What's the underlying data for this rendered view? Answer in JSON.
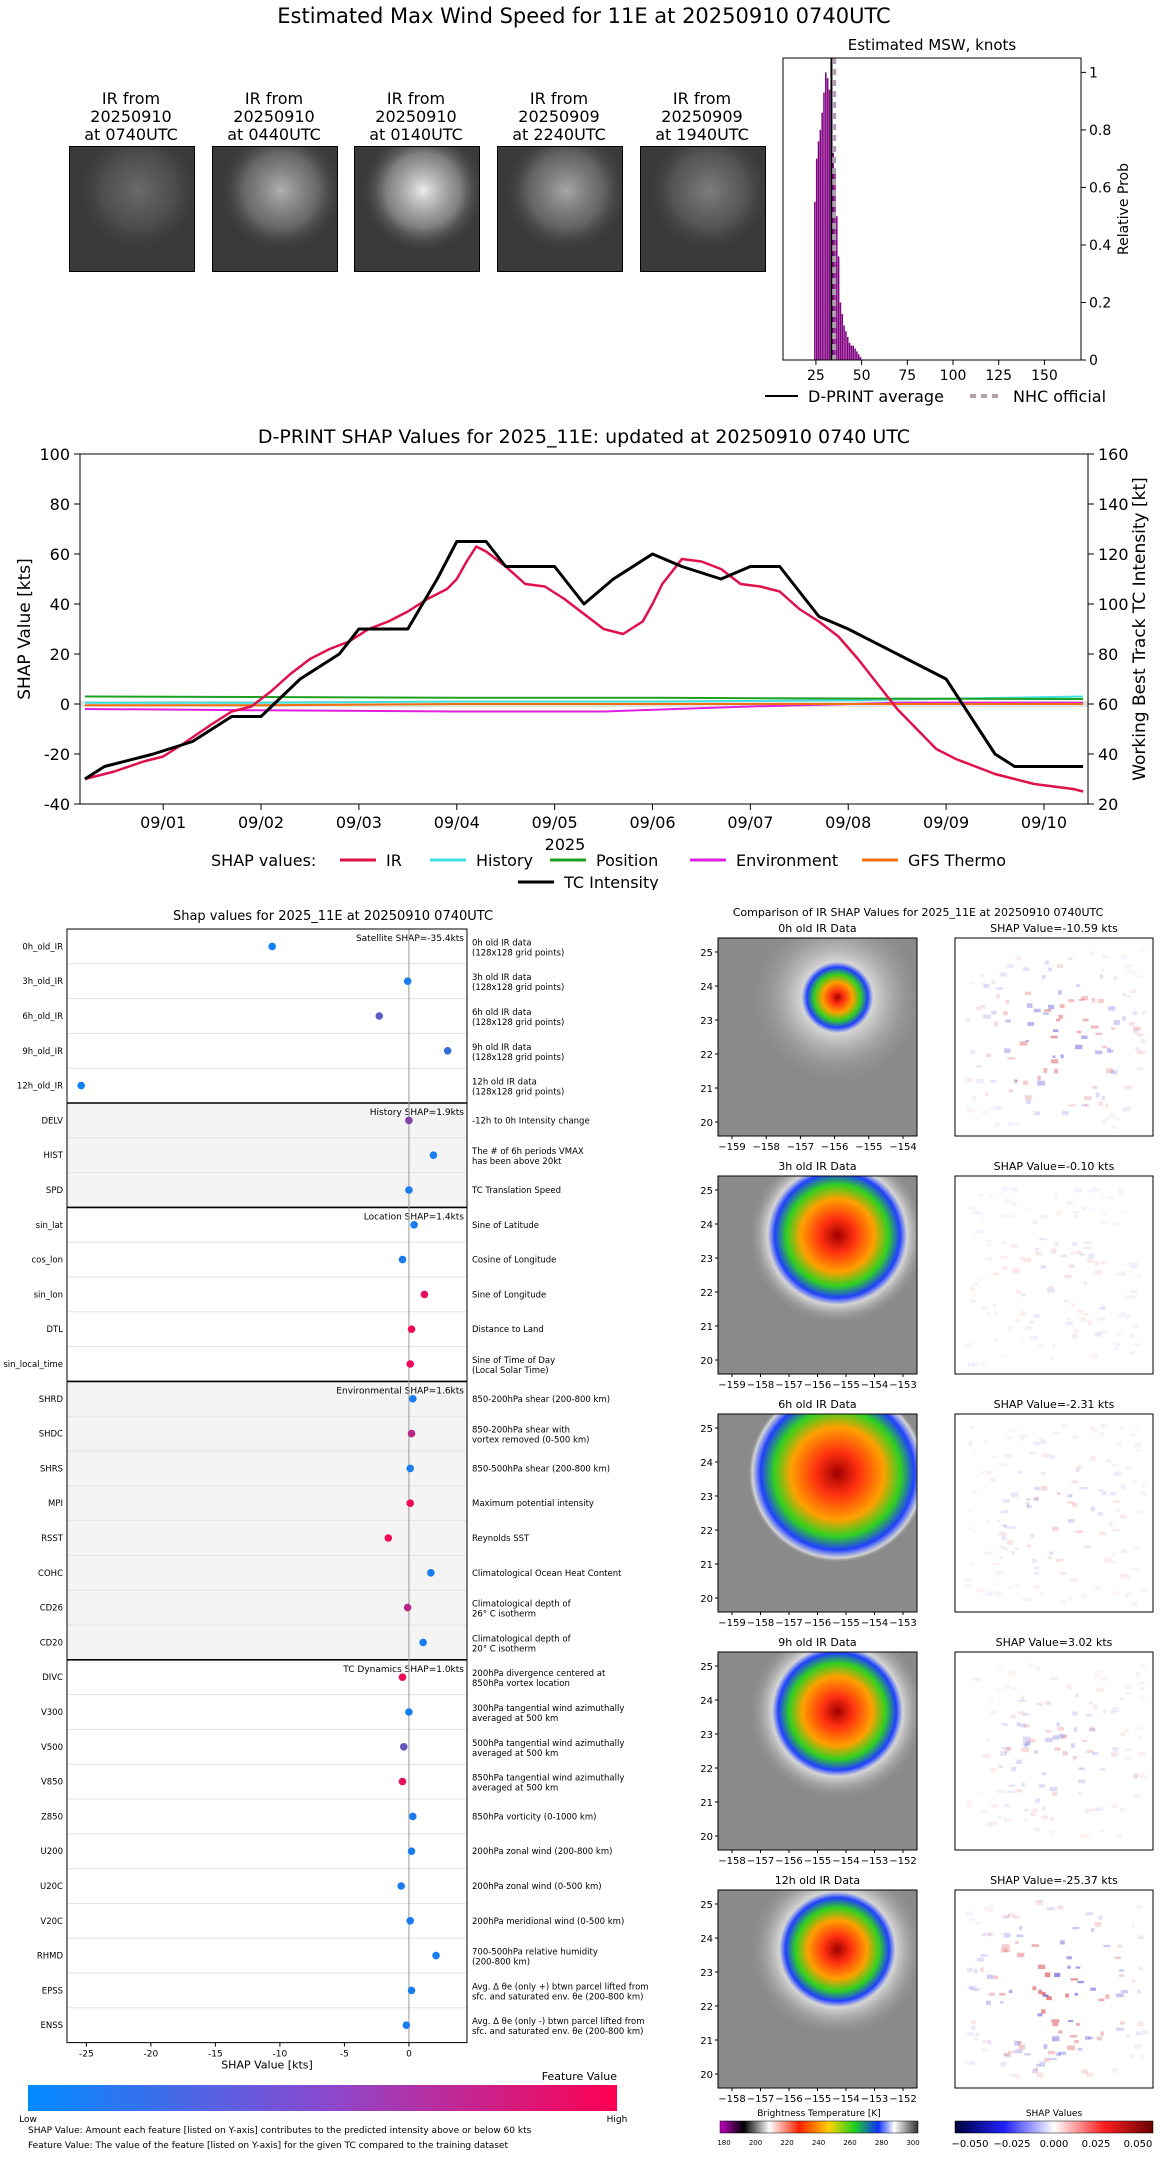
{
  "page": {
    "title": "Estimated Max Wind Speed for 11E at 20250910 0740UTC"
  },
  "ir_thumbnails": [
    {
      "line1": "IR from",
      "line2": "20250910",
      "line3": "at 0740UTC",
      "cloud": 0.25
    },
    {
      "line1": "IR from",
      "line2": "20250910",
      "line3": "at 0440UTC",
      "cloud": 0.6
    },
    {
      "line1": "IR from",
      "line2": "20250910",
      "line3": "at 0140UTC",
      "cloud": 0.9
    },
    {
      "line1": "IR from",
      "line2": "20250909",
      "line3": "at 2240UTC",
      "cloud": 0.55
    },
    {
      "line1": "IR from",
      "line2": "20250909",
      "line3": "at 1940UTC",
      "cloud": 0.35
    }
  ],
  "colors": {
    "ir": "#e0104a",
    "history": "#40e0e0",
    "position": "#20a020",
    "environment": "#e020e0",
    "gfs_thermo": "#f07010",
    "tc_intensity": "#000000",
    "purple": "#800080",
    "nhc": "#b0a0b0"
  },
  "chart_data": [
    {
      "id": "msw-histogram",
      "type": "bar",
      "title": "Estimated MSW, knots",
      "xlabel": "",
      "ylabel": "Relative Prob",
      "xlim": [
        7,
        170
      ],
      "ylim": [
        0,
        1.05
      ],
      "xticks": [
        25,
        50,
        75,
        100,
        125,
        150
      ],
      "yticks": [
        0.0,
        0.2,
        0.4,
        0.6,
        0.8,
        1.0
      ],
      "bins_x": [
        24,
        25,
        26,
        27,
        28,
        29,
        30,
        31,
        32,
        33,
        34,
        35,
        36,
        37,
        38,
        39,
        40,
        41,
        42,
        43,
        44,
        45,
        46,
        47,
        48,
        49
      ],
      "bins_y": [
        0.55,
        0.7,
        0.76,
        0.8,
        0.86,
        0.93,
        1.0,
        0.98,
        0.94,
        0.88,
        0.72,
        0.66,
        0.5,
        0.36,
        0.2,
        0.16,
        0.12,
        0.1,
        0.08,
        0.06,
        0.05,
        0.05,
        0.04,
        0.03,
        0.02,
        0.01
      ],
      "dpr_average": 33.5,
      "nhc_official": 35,
      "legend": [
        "D-PRINT average",
        "NHC official"
      ]
    },
    {
      "id": "shap-time-series",
      "type": "line",
      "title": "D-PRINT SHAP Values for 2025_11E: updated at 20250910 0740 UTC",
      "xlabel": "2025",
      "ylabel": "SHAP Value [kts]",
      "y2label": "Working Best Track TC Intensity [kt]",
      "ylim": [
        -40,
        100
      ],
      "y2lim": [
        20,
        160
      ],
      "yticks": [
        -40,
        -20,
        0,
        20,
        40,
        60,
        80,
        100
      ],
      "y2ticks": [
        20,
        40,
        60,
        80,
        100,
        120,
        140,
        160
      ],
      "xlim": [
        0.15,
        10.45
      ],
      "xticks": [
        1,
        2,
        3,
        4,
        5,
        6,
        7,
        8,
        9,
        10
      ],
      "xticklabels": [
        "09/01",
        "09/02",
        "09/03",
        "09/04",
        "09/05",
        "09/06",
        "09/07",
        "09/08",
        "09/09",
        "09/10"
      ],
      "legend_prefix": "SHAP values:",
      "series": [
        {
          "name": "IR",
          "color": "#e0104a",
          "x": [
            0.2,
            0.5,
            0.8,
            1.0,
            1.2,
            1.5,
            1.7,
            1.9,
            2.1,
            2.3,
            2.5,
            2.7,
            2.9,
            3.1,
            3.3,
            3.5,
            3.7,
            3.9,
            4.0,
            4.1,
            4.2,
            4.3,
            4.5,
            4.7,
            4.9,
            5.1,
            5.3,
            5.5,
            5.7,
            5.9,
            6.0,
            6.1,
            6.3,
            6.5,
            6.7,
            6.9,
            7.1,
            7.3,
            7.5,
            7.7,
            7.9,
            8.1,
            8.3,
            8.5,
            8.7,
            8.9,
            9.1,
            9.3,
            9.5,
            9.7,
            9.9,
            10.1,
            10.3,
            10.4
          ],
          "y": [
            -30,
            -27,
            -23,
            -21,
            -16,
            -8,
            -3,
            -1,
            5,
            12,
            18,
            22,
            25,
            30,
            33,
            37,
            42,
            46,
            50,
            57,
            63,
            61,
            55,
            48,
            47,
            42,
            36,
            30,
            28,
            33,
            40,
            48,
            58,
            57,
            54,
            48,
            47,
            45,
            38,
            33,
            27,
            18,
            8,
            -2,
            -10,
            -18,
            -22,
            -25,
            -28,
            -30,
            -32,
            -33,
            -34,
            -35
          ]
        },
        {
          "name": "History",
          "color": "#40e0e0",
          "x": [
            0.2,
            2.0,
            4.0,
            6.0,
            8.0,
            10.4
          ],
          "y": [
            0.5,
            0.5,
            1,
            1,
            1.5,
            3
          ]
        },
        {
          "name": "Position",
          "color": "#20a020",
          "x": [
            0.2,
            2.0,
            4.0,
            6.0,
            8.0,
            10.4
          ],
          "y": [
            3,
            2.8,
            2.5,
            2.5,
            2.2,
            2
          ]
        },
        {
          "name": "Environment",
          "color": "#e020e0",
          "x": [
            0.2,
            2.0,
            4.0,
            5.5,
            7.0,
            8.5,
            10.4
          ],
          "y": [
            -2,
            -2.5,
            -3,
            -3,
            -1,
            0.5,
            0.5
          ]
        },
        {
          "name": "GFS Thermo",
          "color": "#f07010",
          "x": [
            0.2,
            2.0,
            4.0,
            6.0,
            8.0,
            10.4
          ],
          "y": [
            -0.5,
            -0.5,
            0,
            0,
            0,
            0
          ]
        }
      ],
      "tc_intensity": {
        "name": "TC Intensity",
        "color": "#000000",
        "x": [
          0.2,
          0.4,
          0.9,
          1.3,
          1.7,
          2.0,
          2.4,
          2.8,
          3.0,
          3.5,
          3.8,
          4.0,
          4.3,
          4.5,
          5.0,
          5.3,
          5.6,
          6.0,
          6.3,
          6.7,
          7.0,
          7.3,
          7.7,
          8.0,
          9.0,
          9.5,
          9.7,
          10.0,
          10.4
        ],
        "y": [
          30,
          35,
          40,
          45,
          55,
          55,
          70,
          80,
          90,
          90,
          110,
          125,
          125,
          115,
          115,
          100,
          110,
          120,
          115,
          110,
          115,
          115,
          95,
          90,
          70,
          40,
          35,
          35,
          35
        ]
      }
    },
    {
      "id": "feature-shap-dots",
      "type": "scatter",
      "title": "Shap values for 2025_11E at 20250910 0740UTC",
      "xlabel": "SHAP Value [kts]",
      "xlim": [
        -26.5,
        4.5
      ],
      "xticks": [
        -25,
        -20,
        -15,
        -10,
        -5,
        0
      ],
      "groups": [
        {
          "label": "Satellite SHAP=-35.4kts",
          "shaded": false,
          "features": [
            {
              "name": "0h_old_IR",
              "desc1": "0h old IR data",
              "desc2": "(128x128 grid points)",
              "shap": -10.6,
              "fv": 0.05
            },
            {
              "name": "3h_old_IR",
              "desc1": "3h old IR data",
              "desc2": "(128x128 grid points)",
              "shap": -0.1,
              "fv": 0.1
            },
            {
              "name": "6h_old_IR",
              "desc1": "6h old IR data",
              "desc2": "(128x128 grid points)",
              "shap": -2.3,
              "fv": 0.35
            },
            {
              "name": "9h_old_IR",
              "desc1": "9h old IR data",
              "desc2": "(128x128 grid points)",
              "shap": 3.0,
              "fv": 0.2
            },
            {
              "name": "12h_old_IR",
              "desc1": "12h old IR data",
              "desc2": "(128x128 grid points)",
              "shap": -25.4,
              "fv": 0.05
            }
          ]
        },
        {
          "label": "History SHAP=1.9kts",
          "shaded": true,
          "features": [
            {
              "name": "DELV",
              "desc1": "-12h to 0h Intensity change",
              "desc2": "",
              "shap": 0.0,
              "fv": 0.5
            },
            {
              "name": "HIST",
              "desc1": "The # of 6h periods VMAX",
              "desc2": "has been above 20kt",
              "shap": 1.9,
              "fv": 0.1
            },
            {
              "name": "SPD",
              "desc1": "TC Translation Speed",
              "desc2": "",
              "shap": 0.0,
              "fv": 0.1
            }
          ]
        },
        {
          "label": "Location SHAP=1.4kts",
          "shaded": false,
          "features": [
            {
              "name": "sin_lat",
              "desc1": "Sine of Latitude",
              "desc2": "",
              "shap": 0.4,
              "fv": 0.1
            },
            {
              "name": "cos_lon",
              "desc1": "Cosine of Longitude",
              "desc2": "",
              "shap": -0.5,
              "fv": 0.1
            },
            {
              "name": "sin_lon",
              "desc1": "Sine of Longitude",
              "desc2": "",
              "shap": 1.2,
              "fv": 0.9
            },
            {
              "name": "DTL",
              "desc1": "Distance to Land",
              "desc2": "",
              "shap": 0.2,
              "fv": 0.95
            },
            {
              "name": "sin_local_time",
              "desc1": "Sine of Time of Day",
              "desc2": "(Local Solar Time)",
              "shap": 0.1,
              "fv": 0.95
            }
          ]
        },
        {
          "label": "Environmental SHAP=1.6kts",
          "shaded": true,
          "features": [
            {
              "name": "SHRD",
              "desc1": "850-200hPa shear (200-800 km)",
              "desc2": "",
              "shap": 0.3,
              "fv": 0.1
            },
            {
              "name": "SHDC",
              "desc1": "850-200hPa shear with",
              "desc2": "vortex removed (0-500 km)",
              "shap": 0.2,
              "fv": 0.7
            },
            {
              "name": "SHRS",
              "desc1": "850-500hPa shear (200-800 km)",
              "desc2": "",
              "shap": 0.1,
              "fv": 0.1
            },
            {
              "name": "MPI",
              "desc1": "Maximum potential intensity",
              "desc2": "",
              "shap": 0.1,
              "fv": 0.95
            },
            {
              "name": "RSST",
              "desc1": "Reynolds SST",
              "desc2": "",
              "shap": -1.6,
              "fv": 0.95
            },
            {
              "name": "COHC",
              "desc1": "Climatological Ocean Heat Content",
              "desc2": "",
              "shap": 1.7,
              "fv": 0.1
            },
            {
              "name": "CD26",
              "desc1": "Climatological depth of",
              "desc2": "26° C isotherm",
              "shap": -0.1,
              "fv": 0.7
            },
            {
              "name": "CD20",
              "desc1": "Climatological depth of",
              "desc2": "20° C isotherm",
              "shap": 1.1,
              "fv": 0.1
            }
          ]
        },
        {
          "label": "TC Dynamics SHAP=1.0kts",
          "shaded": false,
          "features": [
            {
              "name": "DIVC",
              "desc1": "200hPa divergence centered at",
              "desc2": "850hPa vortex location",
              "shap": -0.5,
              "fv": 0.95
            },
            {
              "name": "V300",
              "desc1": "300hPa tangential wind azimuthally",
              "desc2": "averaged at 500 km",
              "shap": 0.0,
              "fv": 0.1
            },
            {
              "name": "V500",
              "desc1": "500hPa tangential wind azimuthally",
              "desc2": "averaged at 500 km",
              "shap": -0.4,
              "fv": 0.4
            },
            {
              "name": "V850",
              "desc1": "850hPa tangential wind azimuthally",
              "desc2": "averaged at 500 km",
              "shap": -0.5,
              "fv": 0.9
            },
            {
              "name": "Z850",
              "desc1": "850hPa vorticity (0-1000 km)",
              "desc2": "",
              "shap": 0.3,
              "fv": 0.1
            },
            {
              "name": "U200",
              "desc1": "200hPa zonal wind (200-800 km)",
              "desc2": "",
              "shap": 0.2,
              "fv": 0.1
            },
            {
              "name": "U20C",
              "desc1": "200hPa zonal wind (0-500 km)",
              "desc2": "",
              "shap": -0.6,
              "fv": 0.1
            },
            {
              "name": "V20C",
              "desc1": "200hPa meridional wind (0-500 km)",
              "desc2": "",
              "shap": 0.1,
              "fv": 0.1
            },
            {
              "name": "RHMD",
              "desc1": "700-500hPa relative humidity",
              "desc2": "(200-800 km)",
              "shap": 2.1,
              "fv": 0.1
            },
            {
              "name": "EPSS",
              "desc1": "Avg. Δ θe (only +) btwn parcel lifted from",
              "desc2": "sfc. and saturated env. θe (200-800 km)",
              "shap": 0.2,
              "fv": 0.1
            },
            {
              "name": "ENSS",
              "desc1": "Avg. Δ θe (only -) btwn parcel lifted from",
              "desc2": "sfc. and saturated env. θe (200-800 km)",
              "shap": -0.2,
              "fv": 0.1
            }
          ]
        }
      ],
      "feature_colorbar": {
        "title": "Feature Value",
        "low": "Low",
        "high": "High"
      }
    },
    {
      "id": "ir-shap-comparison",
      "type": "heatmap",
      "title": "Comparison of IR SHAP Values for 2025_11E at 20250910 0740UTC",
      "rows": [
        {
          "ir_title": "0h old IR Data",
          "shap_title": "SHAP Value=-10.59 kts",
          "xticks": [
            "−159",
            "−158",
            "−157",
            "−156",
            "−155",
            "−154"
          ],
          "yticks": [
            "25",
            "24",
            "23",
            "22",
            "21",
            "20"
          ],
          "intensity": 0.3
        },
        {
          "ir_title": "3h old IR Data",
          "shap_title": "SHAP Value=-0.10 kts",
          "xticks": [
            "−159",
            "−158",
            "−157",
            "−156",
            "−155",
            "−154",
            "−153"
          ],
          "yticks": [
            "25",
            "24",
            "23",
            "22",
            "21",
            "20"
          ],
          "intensity": 0.75
        },
        {
          "ir_title": "6h old IR Data",
          "shap_title": "SHAP Value=-2.31 kts",
          "xticks": [
            "−159",
            "−158",
            "−157",
            "−156",
            "−155",
            "−154",
            "−153"
          ],
          "yticks": [
            "25",
            "24",
            "23",
            "22",
            "21",
            "20"
          ],
          "intensity": 0.95
        },
        {
          "ir_title": "9h old IR Data",
          "shap_title": "SHAP Value=3.02 kts",
          "xticks": [
            "−158",
            "−157",
            "−156",
            "−155",
            "−154",
            "−153",
            "−152"
          ],
          "yticks": [
            "25",
            "24",
            "23",
            "22",
            "21",
            "20"
          ],
          "intensity": 0.7
        },
        {
          "ir_title": "12h old IR Data",
          "shap_title": "SHAP Value=-25.37 kts",
          "xticks": [
            "−158",
            "−157",
            "−156",
            "−155",
            "−154",
            "−153",
            "−152"
          ],
          "yticks": [
            "25",
            "24",
            "23",
            "22",
            "21",
            "20"
          ],
          "intensity": 0.6
        }
      ],
      "bt_colorbar": {
        "title": "Brightness Temperature [K]",
        "ticks": [
          "180",
          "200",
          "220",
          "240",
          "260",
          "280",
          "300"
        ]
      },
      "shap_colorbar": {
        "title": "SHAP Values",
        "ticks": [
          "−0.050",
          "−0.025",
          "0.000",
          "0.025",
          "0.050"
        ]
      }
    }
  ],
  "notes": {
    "line1": "SHAP Value: Amount each feature [listed on Y-axis] contributes to the predicted intensity above or below 60 kts",
    "line2": "Feature Value: The value of the feature [listed on Y-axis] for the given TC compared to the training dataset"
  }
}
